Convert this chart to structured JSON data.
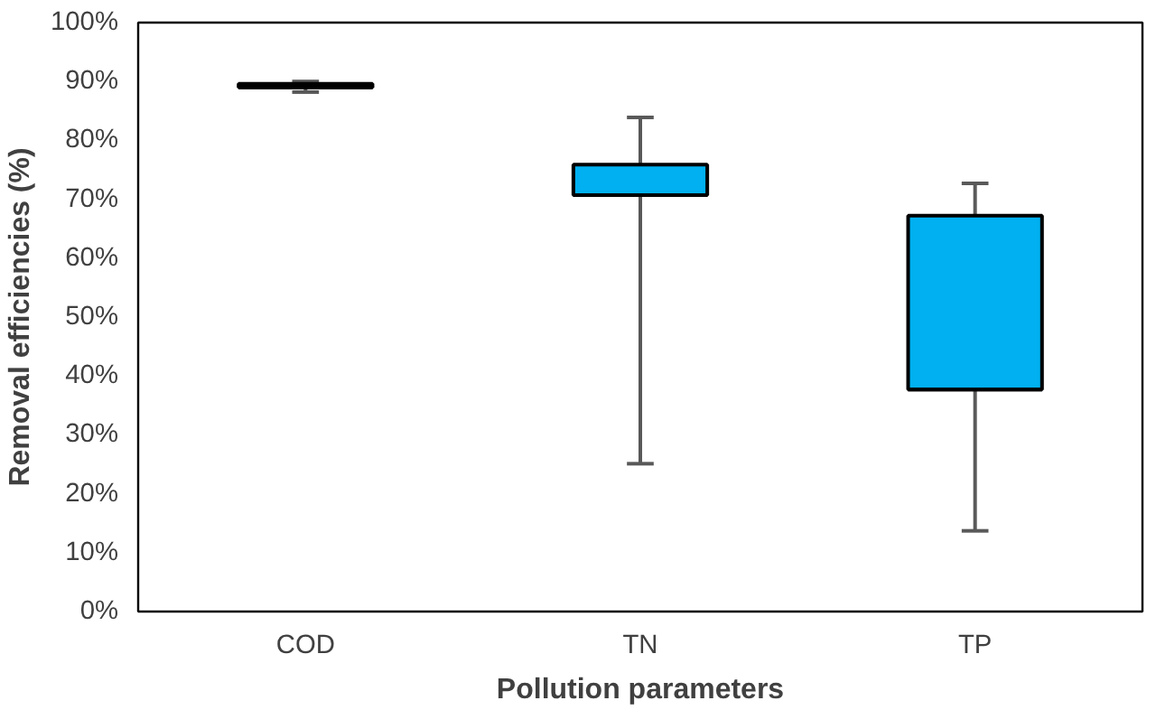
{
  "chart_data": {
    "type": "box",
    "xlabel": "Pollution parameters",
    "ylabel": "Removal efficiencies (%)",
    "categories": [
      "COD",
      "TN",
      "TP"
    ],
    "boxes": [
      {
        "low": 88.2,
        "q1": 89.0,
        "median": 89.0,
        "q3": 89.6,
        "high": 90.0
      },
      {
        "low": 25.1,
        "q1": 70.7,
        "median": 70.7,
        "q3": 75.9,
        "high": 83.9
      },
      {
        "low": 13.7,
        "q1": 37.7,
        "median": 37.7,
        "q3": 67.2,
        "high": 72.7
      }
    ],
    "color": "#00b0f0",
    "ylim": [
      0,
      100
    ],
    "yticks": [
      {
        "value": 0,
        "label": "0%"
      },
      {
        "value": 10,
        "label": "10%"
      },
      {
        "value": 20,
        "label": "20%"
      },
      {
        "value": 30,
        "label": "30%"
      },
      {
        "value": 40,
        "label": "40%"
      },
      {
        "value": 50,
        "label": "50%"
      },
      {
        "value": 60,
        "label": "60%"
      },
      {
        "value": 70,
        "label": "70%"
      },
      {
        "value": 80,
        "label": "80%"
      },
      {
        "value": 90,
        "label": "90%"
      },
      {
        "value": 100,
        "label": "100%"
      }
    ],
    "grid": false
  }
}
